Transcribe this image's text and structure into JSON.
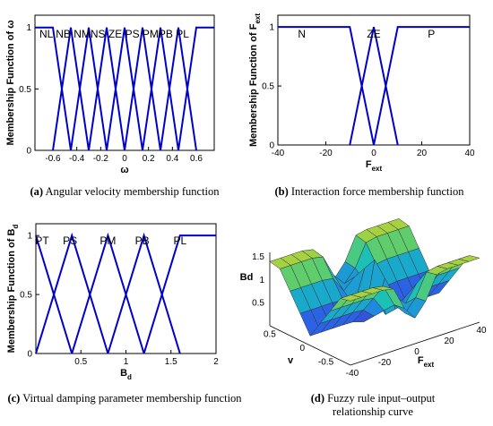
{
  "chart_data": [
    {
      "type": "line",
      "panel": "a",
      "xlabel": "ω",
      "ylabel": "Membership Function of ω",
      "xlim": [
        -0.75,
        0.75
      ],
      "ylim": [
        0,
        1.1
      ],
      "xticks": [
        "-0.6",
        "-0.4",
        "-0.2",
        "0",
        "0.2",
        "0.4",
        "0.6"
      ],
      "yticks": [
        "0",
        "0.5",
        "1"
      ],
      "sets": [
        "NL",
        "NB",
        "NM",
        "NS",
        "ZE",
        "PS",
        "PM",
        "PB",
        "PL"
      ],
      "centers": [
        -0.6,
        -0.45,
        -0.3,
        -0.15,
        0,
        0.15,
        0.3,
        0.45,
        0.6
      ],
      "half_width": 0.15,
      "shoulders": true,
      "set_label_text": "NL  NB NMNS ZE PS PMPB  PL",
      "caption_letter": "(a)",
      "caption": "Angular velocity membership function"
    },
    {
      "type": "line",
      "panel": "b",
      "xlabel": "F",
      "xlabel_sub": "ext",
      "ylabel": "Membership Function of F",
      "ylabel_sub": "ext",
      "xlim": [
        -40,
        40
      ],
      "ylim": [
        0,
        1.1
      ],
      "xticks": [
        "-40",
        "-20",
        "0",
        "20",
        "40"
      ],
      "yticks": [
        "0",
        "0.5",
        "1"
      ],
      "sets": [
        "N",
        "ZE",
        "P"
      ],
      "centers": [
        -10,
        0,
        10
      ],
      "half_width": 10,
      "shoulders": true,
      "caption_letter": "(b)",
      "caption": "Interaction force membership function"
    },
    {
      "type": "line",
      "panel": "c",
      "xlabel": "B",
      "xlabel_sub": "d",
      "ylabel": "Membership Function of B",
      "ylabel_sub": "d",
      "xlim": [
        0,
        2
      ],
      "ylim": [
        0,
        1.1
      ],
      "xticks": [
        "0.5",
        "1",
        "1.5",
        "2"
      ],
      "yticks": [
        "0",
        "0.5",
        "1"
      ],
      "sets": [
        "PT",
        "PS",
        "PM",
        "PB",
        "PL"
      ],
      "centers": [
        0,
        0.4,
        0.8,
        1.2,
        1.6
      ],
      "half_width": 0.4,
      "shoulders": "right",
      "caption_letter": "(c)",
      "caption": "Virtual damping parameter membership function"
    },
    {
      "type": "surface",
      "panel": "d",
      "xlabel": "v",
      "ylabel": "F",
      "ylabel_sub": "ext",
      "zlabel": "Bd",
      "x_range": [
        -0.7,
        0.7
      ],
      "y_range": [
        -40,
        40
      ],
      "z_range": [
        0,
        1.6
      ],
      "xticks": [
        "0.5",
        "0",
        "-0.5"
      ],
      "yticks": [
        "-40",
        "-20",
        "0",
        "20",
        "40"
      ],
      "zticks": [
        "0.5",
        "1",
        "1.5"
      ],
      "caption_letter": "(d)",
      "caption": "Fuzzy rule input–output relationship curve"
    }
  ],
  "colors": {
    "line": "#0000cc",
    "axis": "#000000"
  }
}
